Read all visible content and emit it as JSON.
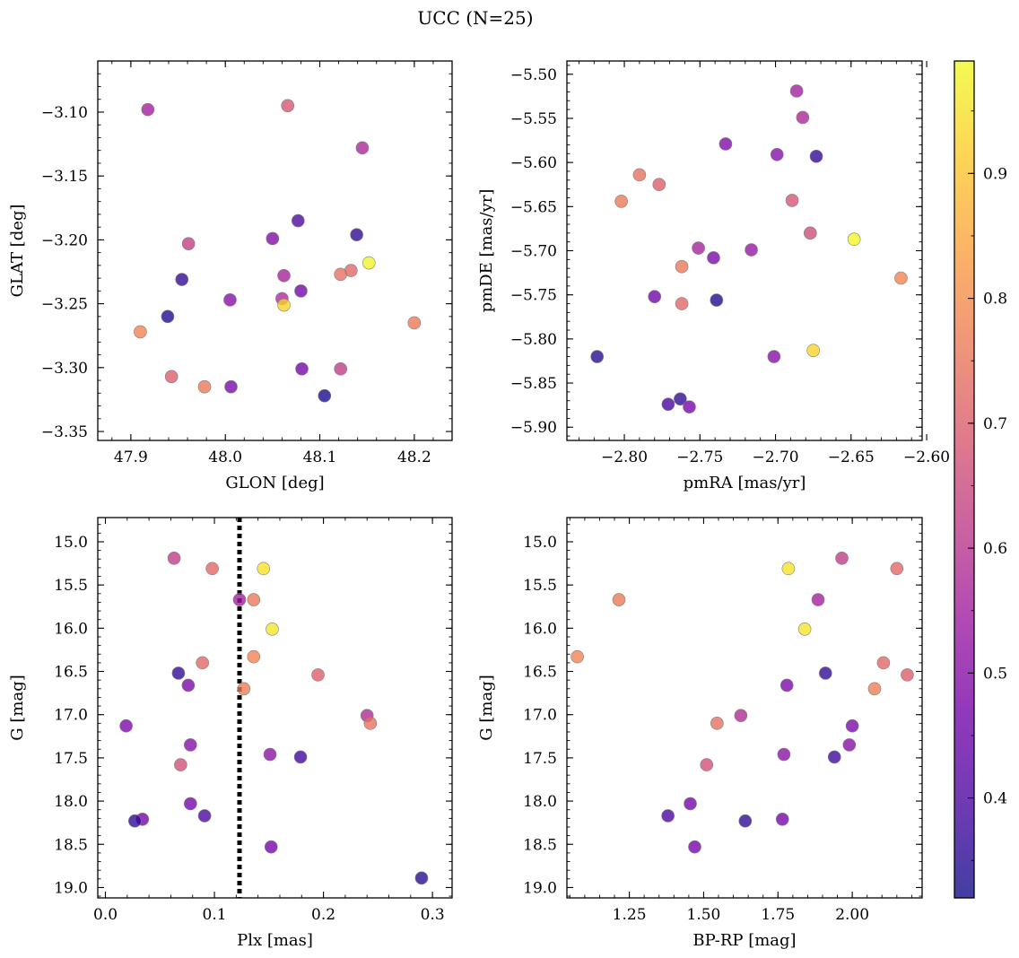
{
  "figure": {
    "title": "UCC (N=25)"
  },
  "colormap": {
    "name": "plasma",
    "stops": [
      "#0d0887",
      "#46039f",
      "#7201a8",
      "#9c179e",
      "#bd3786",
      "#d8576b",
      "#ed7953",
      "#fb9f3a",
      "#fdca26",
      "#f0f921"
    ],
    "alpha": 0.78,
    "range": [
      0.32,
      0.99
    ],
    "ticks": [
      0.4,
      0.5,
      0.6,
      0.7,
      0.8,
      0.9
    ],
    "tick_labels": [
      "0.4",
      "0.5",
      "0.6",
      "0.7",
      "0.8",
      "0.9"
    ]
  },
  "chart_data": [
    {
      "type": "scatter",
      "panel": "top-left",
      "xlabel": "GLON [deg]",
      "ylabel": "GLAT [deg]",
      "xlim": [
        47.865,
        48.24
      ],
      "ylim": [
        -3.357,
        -3.06
      ],
      "y_inverted": false,
      "xticks": [
        47.9,
        48.0,
        48.1,
        48.2
      ],
      "xtick_labels": [
        "47.9",
        "48.0",
        "48.1",
        "48.2"
      ],
      "yticks": [
        -3.35,
        -3.3,
        -3.25,
        -3.2,
        -3.15,
        -3.1
      ],
      "ytick_labels": [
        "−3.35",
        "−3.30",
        "−3.25",
        "−3.20",
        "−3.15",
        "−3.10"
      ],
      "x_minor": 0.02,
      "y_minor": 0.01,
      "vline": null,
      "points": [
        {
          "x": 47.918,
          "y": -3.098,
          "c": 0.55
        },
        {
          "x": 48.066,
          "y": -3.095,
          "c": 0.68
        },
        {
          "x": 48.145,
          "y": -3.128,
          "c": 0.57
        },
        {
          "x": 48.077,
          "y": -3.185,
          "c": 0.4
        },
        {
          "x": 48.139,
          "y": -3.196,
          "c": 0.36
        },
        {
          "x": 48.05,
          "y": -3.199,
          "c": 0.49
        },
        {
          "x": 47.961,
          "y": -3.203,
          "c": 0.63
        },
        {
          "x": 48.152,
          "y": -3.218,
          "c": 0.98
        },
        {
          "x": 48.133,
          "y": -3.224,
          "c": 0.72
        },
        {
          "x": 48.122,
          "y": -3.227,
          "c": 0.74
        },
        {
          "x": 48.062,
          "y": -3.228,
          "c": 0.56
        },
        {
          "x": 47.954,
          "y": -3.231,
          "c": 0.36
        },
        {
          "x": 48.08,
          "y": -3.24,
          "c": 0.46
        },
        {
          "x": 48.06,
          "y": -3.246,
          "c": 0.58
        },
        {
          "x": 48.005,
          "y": -3.247,
          "c": 0.5
        },
        {
          "x": 48.062,
          "y": -3.251,
          "c": 0.93
        },
        {
          "x": 47.939,
          "y": -3.26,
          "c": 0.34
        },
        {
          "x": 48.2,
          "y": -3.265,
          "c": 0.76
        },
        {
          "x": 47.91,
          "y": -3.272,
          "c": 0.78
        },
        {
          "x": 48.081,
          "y": -3.301,
          "c": 0.47
        },
        {
          "x": 48.122,
          "y": -3.301,
          "c": 0.62
        },
        {
          "x": 47.943,
          "y": -3.307,
          "c": 0.7
        },
        {
          "x": 47.978,
          "y": -3.315,
          "c": 0.76
        },
        {
          "x": 48.006,
          "y": -3.315,
          "c": 0.48
        },
        {
          "x": 48.105,
          "y": -3.322,
          "c": 0.33
        }
      ]
    },
    {
      "type": "scatter",
      "panel": "top-right",
      "xlabel": "pmRA [mas/yr]",
      "ylabel": "pmDE [mas/yr]",
      "xlim": [
        -2.838,
        -2.603
      ],
      "ylim": [
        -5.915,
        -5.485
      ],
      "y_inverted": false,
      "xticks": [
        -2.8,
        -2.75,
        -2.7,
        -2.65,
        -2.6
      ],
      "xtick_labels": [
        "−2.80",
        "−2.75",
        "−2.70",
        "−2.65",
        "−2.60"
      ],
      "yticks": [
        -5.9,
        -5.85,
        -5.8,
        -5.75,
        -5.7,
        -5.65,
        -5.6,
        -5.55,
        -5.5
      ],
      "ytick_labels": [
        "−5.90",
        "−5.85",
        "−5.80",
        "−5.75",
        "−5.70",
        "−5.65",
        "−5.60",
        "−5.55",
        "−5.50"
      ],
      "x_minor": 0.01,
      "y_minor": 0.01,
      "vline": null,
      "points": [
        {
          "x": -2.686,
          "y": -5.519,
          "c": 0.55
        },
        {
          "x": -2.682,
          "y": -5.549,
          "c": 0.57
        },
        {
          "x": -2.733,
          "y": -5.579,
          "c": 0.49
        },
        {
          "x": -2.699,
          "y": -5.591,
          "c": 0.5
        },
        {
          "x": -2.673,
          "y": -5.593,
          "c": 0.36
        },
        {
          "x": -2.79,
          "y": -5.614,
          "c": 0.74
        },
        {
          "x": -2.777,
          "y": -5.625,
          "c": 0.7
        },
        {
          "x": -2.802,
          "y": -5.644,
          "c": 0.76
        },
        {
          "x": -2.689,
          "y": -5.643,
          "c": 0.68
        },
        {
          "x": -2.677,
          "y": -5.68,
          "c": 0.66
        },
        {
          "x": -2.648,
          "y": -5.687,
          "c": 0.98
        },
        {
          "x": -2.751,
          "y": -5.697,
          "c": 0.56
        },
        {
          "x": -2.716,
          "y": -5.699,
          "c": 0.53
        },
        {
          "x": -2.741,
          "y": -5.708,
          "c": 0.48
        },
        {
          "x": -2.762,
          "y": -5.718,
          "c": 0.76
        },
        {
          "x": -2.617,
          "y": -5.731,
          "c": 0.78
        },
        {
          "x": -2.78,
          "y": -5.752,
          "c": 0.46
        },
        {
          "x": -2.739,
          "y": -5.756,
          "c": 0.34
        },
        {
          "x": -2.762,
          "y": -5.76,
          "c": 0.72
        },
        {
          "x": -2.675,
          "y": -5.813,
          "c": 0.93
        },
        {
          "x": -2.818,
          "y": -5.82,
          "c": 0.35
        },
        {
          "x": -2.701,
          "y": -5.82,
          "c": 0.5
        },
        {
          "x": -2.763,
          "y": -5.868,
          "c": 0.36
        },
        {
          "x": -2.771,
          "y": -5.874,
          "c": 0.39
        },
        {
          "x": -2.757,
          "y": -5.877,
          "c": 0.47
        }
      ]
    },
    {
      "type": "scatter",
      "panel": "bottom-left",
      "xlabel": "Plx [mas]",
      "ylabel": "G [mag]",
      "xlim": [
        -0.007,
        0.318
      ],
      "ylim": [
        19.12,
        14.72
      ],
      "y_inverted": true,
      "xticks": [
        0.0,
        0.1,
        0.2,
        0.3
      ],
      "xtick_labels": [
        "0.0",
        "0.1",
        "0.2",
        "0.3"
      ],
      "yticks": [
        15.0,
        15.5,
        16.0,
        16.5,
        17.0,
        17.5,
        18.0,
        18.5,
        19.0
      ],
      "ytick_labels": [
        "15.0",
        "15.5",
        "16.0",
        "16.5",
        "17.0",
        "17.5",
        "18.0",
        "18.5",
        "19.0"
      ],
      "x_minor": 0.02,
      "y_minor": 0.1,
      "vline": 0.123,
      "points": [
        {
          "x": 0.063,
          "y": 15.19,
          "c": 0.62
        },
        {
          "x": 0.098,
          "y": 15.31,
          "c": 0.72
        },
        {
          "x": 0.145,
          "y": 15.31,
          "c": 0.95
        },
        {
          "x": 0.123,
          "y": 15.67,
          "c": 0.55
        },
        {
          "x": 0.136,
          "y": 15.67,
          "c": 0.76
        },
        {
          "x": 0.153,
          "y": 16.01,
          "c": 0.96
        },
        {
          "x": 0.136,
          "y": 16.33,
          "c": 0.78
        },
        {
          "x": 0.089,
          "y": 16.4,
          "c": 0.72
        },
        {
          "x": 0.067,
          "y": 16.52,
          "c": 0.36
        },
        {
          "x": 0.195,
          "y": 16.54,
          "c": 0.7
        },
        {
          "x": 0.076,
          "y": 16.66,
          "c": 0.48
        },
        {
          "x": 0.127,
          "y": 16.7,
          "c": 0.77
        },
        {
          "x": 0.24,
          "y": 17.01,
          "c": 0.58
        },
        {
          "x": 0.243,
          "y": 17.1,
          "c": 0.74
        },
        {
          "x": 0.019,
          "y": 17.13,
          "c": 0.48
        },
        {
          "x": 0.078,
          "y": 17.35,
          "c": 0.5
        },
        {
          "x": 0.151,
          "y": 17.46,
          "c": 0.51
        },
        {
          "x": 0.179,
          "y": 17.49,
          "c": 0.38
        },
        {
          "x": 0.069,
          "y": 17.58,
          "c": 0.67
        },
        {
          "x": 0.078,
          "y": 18.03,
          "c": 0.47
        },
        {
          "x": 0.091,
          "y": 18.17,
          "c": 0.4
        },
        {
          "x": 0.034,
          "y": 18.21,
          "c": 0.47
        },
        {
          "x": 0.027,
          "y": 18.23,
          "c": 0.36
        },
        {
          "x": 0.152,
          "y": 18.53,
          "c": 0.47
        },
        {
          "x": 0.29,
          "y": 18.89,
          "c": 0.35
        }
      ]
    },
    {
      "type": "scatter",
      "panel": "bottom-right",
      "xlabel": "BP-RP [mag]",
      "ylabel": "G [mag]",
      "xlim": [
        1.04,
        2.235
      ],
      "ylim": [
        19.12,
        14.72
      ],
      "y_inverted": true,
      "xticks": [
        1.25,
        1.5,
        1.75,
        2.0
      ],
      "xtick_labels": [
        "1.25",
        "1.50",
        "1.75",
        "2.00"
      ],
      "yticks": [
        15.0,
        15.5,
        16.0,
        16.5,
        17.0,
        17.5,
        18.0,
        18.5,
        19.0
      ],
      "ytick_labels": [
        "15.0",
        "15.5",
        "16.0",
        "16.5",
        "17.0",
        "17.5",
        "18.0",
        "18.5",
        "19.0"
      ],
      "x_minor": 0.05,
      "y_minor": 0.1,
      "vline": null,
      "points": [
        {
          "x": 1.965,
          "y": 15.19,
          "c": 0.62
        },
        {
          "x": 1.785,
          "y": 15.31,
          "c": 0.95
        },
        {
          "x": 2.15,
          "y": 15.31,
          "c": 0.72
        },
        {
          "x": 1.215,
          "y": 15.67,
          "c": 0.76
        },
        {
          "x": 1.885,
          "y": 15.67,
          "c": 0.55
        },
        {
          "x": 1.84,
          "y": 16.01,
          "c": 0.96
        },
        {
          "x": 1.075,
          "y": 16.33,
          "c": 0.78
        },
        {
          "x": 2.105,
          "y": 16.4,
          "c": 0.72
        },
        {
          "x": 1.91,
          "y": 16.52,
          "c": 0.36
        },
        {
          "x": 2.185,
          "y": 16.54,
          "c": 0.7
        },
        {
          "x": 1.78,
          "y": 16.66,
          "c": 0.48
        },
        {
          "x": 2.075,
          "y": 16.7,
          "c": 0.77
        },
        {
          "x": 1.625,
          "y": 17.01,
          "c": 0.58
        },
        {
          "x": 1.545,
          "y": 17.1,
          "c": 0.74
        },
        {
          "x": 2.0,
          "y": 17.13,
          "c": 0.48
        },
        {
          "x": 1.99,
          "y": 17.35,
          "c": 0.5
        },
        {
          "x": 1.77,
          "y": 17.46,
          "c": 0.51
        },
        {
          "x": 1.94,
          "y": 17.49,
          "c": 0.38
        },
        {
          "x": 1.51,
          "y": 17.58,
          "c": 0.67
        },
        {
          "x": 1.455,
          "y": 18.03,
          "c": 0.47
        },
        {
          "x": 1.38,
          "y": 18.17,
          "c": 0.4
        },
        {
          "x": 1.765,
          "y": 18.21,
          "c": 0.47
        },
        {
          "x": 1.64,
          "y": 18.23,
          "c": 0.36
        },
        {
          "x": 1.47,
          "y": 18.53,
          "c": 0.47
        }
      ]
    }
  ]
}
